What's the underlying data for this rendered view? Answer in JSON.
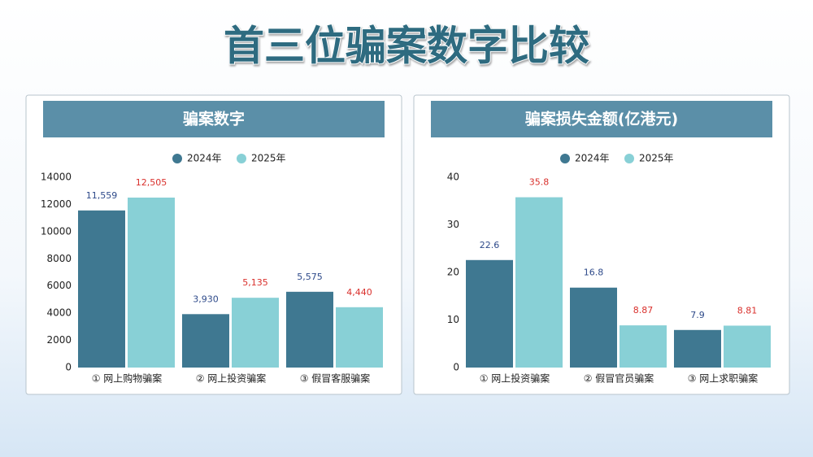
{
  "title": "首三位骗案数字比较",
  "chart_data": [
    {
      "type": "bar",
      "title": "骗案数字",
      "categories": [
        "① 网上购物骗案",
        "② 网上投资骗案",
        "③ 假冒客服骗案"
      ],
      "series": [
        {
          "name": "2024年",
          "color": "#3f7891",
          "label_color": "#2e4a8a",
          "values": [
            11559,
            3930,
            5575
          ],
          "value_labels": [
            "11,559",
            "3,930",
            "5,575"
          ]
        },
        {
          "name": "2025年",
          "color": "#88d0d6",
          "label_color": "#d9302c",
          "values": [
            12505,
            5135,
            4440
          ],
          "value_labels": [
            "12,505",
            "5,135",
            "4,440"
          ]
        }
      ],
      "ylim": [
        0,
        14000
      ],
      "yticks": [
        0,
        2000,
        4000,
        6000,
        8000,
        10000,
        12000,
        14000
      ],
      "legend": "top"
    },
    {
      "type": "bar",
      "title": "骗案损失金额(亿港元)",
      "categories": [
        "① 网上投资骗案",
        "② 假冒官员骗案",
        "③ 网上求职骗案"
      ],
      "series": [
        {
          "name": "2024年",
          "color": "#3f7891",
          "label_color": "#2e4a8a",
          "values": [
            22.6,
            16.8,
            7.9
          ]
        },
        {
          "name": "2025年",
          "color": "#88d0d6",
          "label_color": "#d9302c",
          "values": [
            35.8,
            8.87,
            8.81
          ]
        }
      ],
      "ylim": [
        0,
        40
      ],
      "yticks": [
        0,
        10,
        20,
        30,
        40
      ],
      "legend": "top"
    }
  ]
}
